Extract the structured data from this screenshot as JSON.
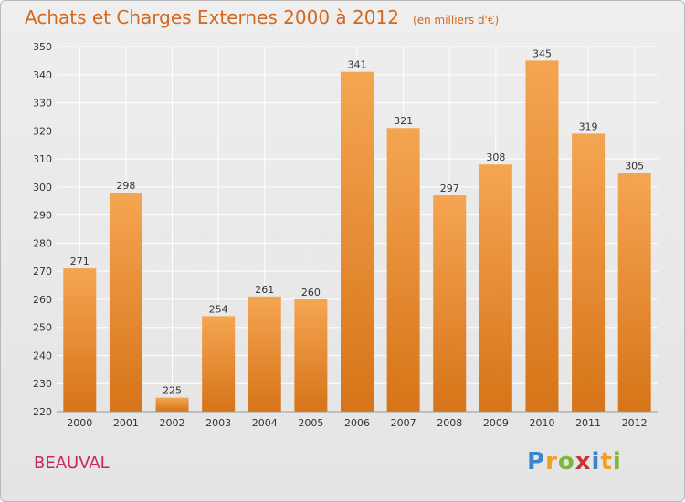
{
  "header": {
    "title": "Achats et Charges Externes 2000 à 2012",
    "unit": "(en milliers d'€)"
  },
  "footer": {
    "commune": "BEAUVAL",
    "logo_letters": [
      "P",
      "r",
      "o",
      "x",
      "i",
      "t",
      "i"
    ]
  },
  "colors": {
    "bar_top": "#f5a552",
    "bar_bottom": "#d67418",
    "grid": "#ffffff",
    "axis_text": "#333333"
  },
  "chart_data": {
    "type": "bar",
    "categories": [
      "2000",
      "2001",
      "2002",
      "2003",
      "2004",
      "2005",
      "2006",
      "2007",
      "2008",
      "2009",
      "2010",
      "2011",
      "2012"
    ],
    "values": [
      271,
      298,
      225,
      254,
      261,
      260,
      341,
      321,
      297,
      308,
      345,
      319,
      305
    ],
    "data_labels": [
      "271",
      "298",
      "225",
      "254",
      "261",
      "260",
      "341",
      "321",
      "297",
      "308",
      "345",
      "319",
      "305"
    ],
    "ylim": [
      220,
      350
    ],
    "yticks": [
      220,
      230,
      240,
      250,
      260,
      270,
      280,
      290,
      300,
      310,
      320,
      330,
      340,
      350
    ],
    "ytick_labels": [
      "220",
      "230",
      "240",
      "250",
      "260",
      "270",
      "280",
      "290",
      "300",
      "310",
      "320",
      "330",
      "340",
      "350"
    ],
    "grid": true,
    "title": "Achats et Charges Externes 2000 à 2012",
    "xlabel": "",
    "ylabel": ""
  }
}
